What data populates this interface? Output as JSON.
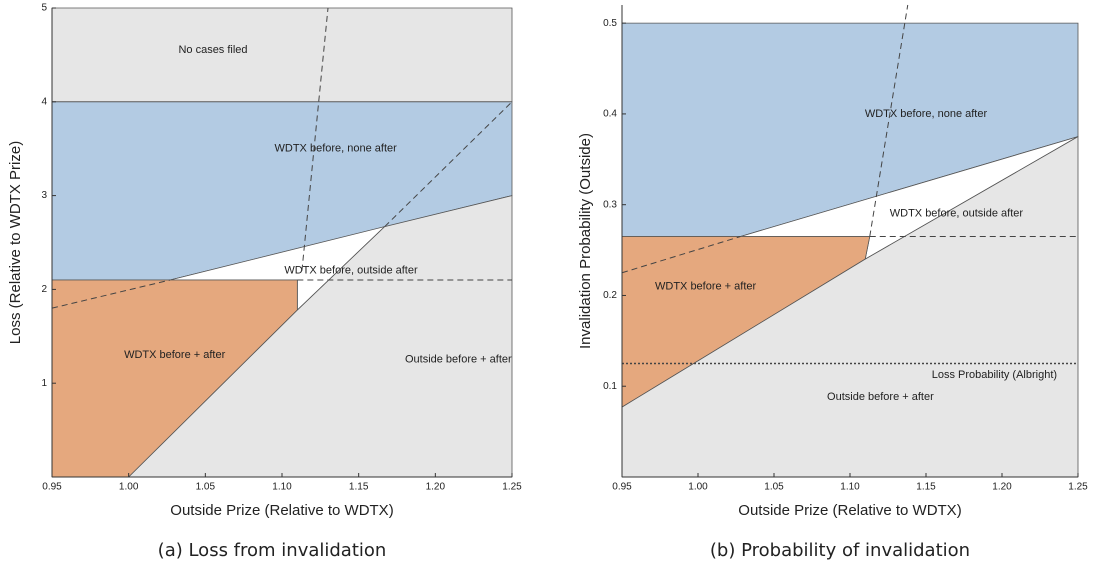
{
  "chart_data": [
    {
      "type": "region",
      "caption": "(a) Loss from invalidation",
      "x_label": "Outside Prize (Relative to WDTX)",
      "y_label": "Loss (Relative to WDTX Prize)",
      "xlim": [
        0.95,
        1.25
      ],
      "ylim": [
        0,
        5
      ],
      "xticks": [
        0.95,
        {
          "value": 1,
          "label": "1.00"
        },
        1.05,
        {
          "value": 1.1,
          "label": "1.10"
        },
        1.15,
        {
          "value": 1.2,
          "label": "1.20"
        },
        1.25
      ],
      "yticks": [
        1,
        2,
        3,
        4,
        5
      ],
      "regions": [
        {
          "name": "No cases filed",
          "color": "#e6e6e6",
          "x": [
            0.95,
            1.25,
            1.25,
            0.95
          ],
          "y": [
            4,
            4,
            5,
            5
          ]
        },
        {
          "name": "WDTX before, none after",
          "color": "#b3cbe3",
          "x": [
            0.95,
            1.25,
            1.25,
            1.027,
            0.95
          ],
          "y": [
            4,
            4,
            3,
            2.1,
            2.1
          ]
        },
        {
          "name": "WDTX before, outside after",
          "color": "#ffffff",
          "x": [
            1.027,
            1.167,
            1.11,
            1.11
          ],
          "y": [
            2.1,
            2.67,
            1.78,
            2.1
          ]
        },
        {
          "name": "WDTX before + after",
          "color": "#e5a87e",
          "x": [
            0.95,
            1.11,
            1.11,
            1.0,
            0.95
          ],
          "y": [
            2.1,
            2.1,
            1.78,
            0,
            0
          ]
        },
        {
          "name": "Outside before + after",
          "color": "#e6e6e6",
          "x": [
            1.0,
            1.11,
            1.167,
            1.25,
            1.25
          ],
          "y": [
            0,
            1.78,
            2.67,
            3,
            0
          ]
        }
      ],
      "lines": [
        {
          "style": "dashed",
          "x": [
            1.113,
            1.13
          ],
          "y": [
            2.2,
            5
          ]
        },
        {
          "style": "dashed",
          "x": [
            1.167,
            1.25
          ],
          "y": [
            2.67,
            4
          ]
        },
        {
          "style": "dashed",
          "x": [
            0.95,
            1.027
          ],
          "y": [
            1.8,
            2.1
          ]
        },
        {
          "style": "dashed",
          "x": [
            1.11,
            1.25
          ],
          "y": [
            2.1,
            2.1
          ]
        }
      ]
    },
    {
      "type": "region",
      "caption": "(b) Probability of invalidation",
      "x_label": "Outside Prize (Relative to WDTX)",
      "y_label": "Invalidation Probability (Outside)",
      "xlim": [
        0.95,
        1.25
      ],
      "ylim": [
        0,
        0.52
      ],
      "xticks": [
        0.95,
        {
          "value": 1,
          "label": "1.00"
        },
        1.05,
        {
          "value": 1.1,
          "label": "1.10"
        },
        1.15,
        {
          "value": 1.2,
          "label": "1.20"
        },
        1.25
      ],
      "yticks": [
        0.1,
        0.2,
        0.3,
        0.4,
        0.5
      ],
      "regions": [
        {
          "name": "WDTX before, none after",
          "color": "#b3cbe3",
          "x": [
            0.95,
            1.25,
            1.25,
            1.028,
            0.95
          ],
          "y": [
            0.5,
            0.5,
            0.375,
            0.265,
            0.265
          ]
        },
        {
          "name": "WDTX before, outside after",
          "color": "#ffffff",
          "x": [
            1.028,
            1.25,
            1.11,
            1.113
          ],
          "y": [
            0.265,
            0.375,
            0.24,
            0.265
          ]
        },
        {
          "name": "WDTX before + after",
          "color": "#e5a87e",
          "x": [
            0.95,
            1.113,
            1.11,
            0.95
          ],
          "y": [
            0.265,
            0.265,
            0.24,
            0.077
          ]
        },
        {
          "name": "Outside before + after",
          "color": "#e6e6e6",
          "x": [
            0.95,
            1.11,
            1.25,
            1.25,
            0.95
          ],
          "y": [
            0.077,
            0.24,
            0.375,
            0,
            0
          ]
        }
      ],
      "lines": [
        {
          "style": "dashed",
          "x": [
            1.113,
            1.138
          ],
          "y": [
            0.265,
            0.52
          ]
        },
        {
          "style": "dashed",
          "x": [
            0.95,
            1.028
          ],
          "y": [
            0.225,
            0.265
          ]
        },
        {
          "style": "dashed",
          "x": [
            1.113,
            1.25
          ],
          "y": [
            0.265,
            0.265
          ]
        },
        {
          "style": "dotted",
          "name": "Loss Probability (Albright)",
          "x": [
            0.95,
            1.25
          ],
          "y": [
            0.125,
            0.125
          ]
        }
      ]
    }
  ]
}
